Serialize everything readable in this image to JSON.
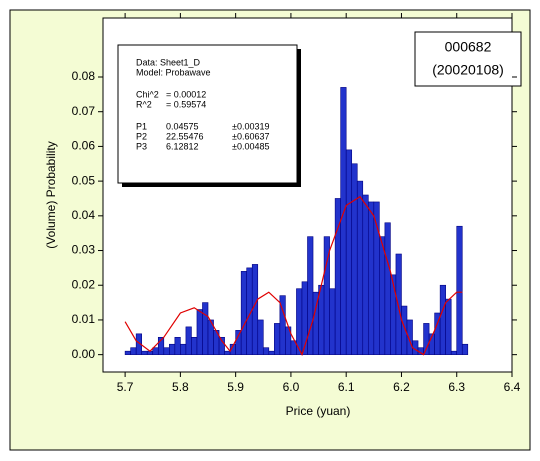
{
  "chart_data": {
    "type": "histogram",
    "xlabel": "Price (yuan)",
    "ylabel": "(Volume) Probability",
    "color": "#2233cc",
    "edgecolor": "#000080",
    "bins": [
      5.7,
      5.71,
      5.72,
      5.73,
      5.74,
      5.75,
      5.76,
      5.77,
      5.78,
      5.79,
      5.8,
      5.81,
      5.82,
      5.83,
      5.84,
      5.85,
      5.86,
      5.87,
      5.88,
      5.89,
      5.9,
      5.91,
      5.92,
      5.93,
      5.94,
      5.95,
      5.96,
      5.97,
      5.98,
      5.99,
      6.0,
      6.01,
      6.02,
      6.03,
      6.04,
      6.05,
      6.06,
      6.07,
      6.08,
      6.09,
      6.1,
      6.11,
      6.12,
      6.13,
      6.14,
      6.15,
      6.16,
      6.17,
      6.18,
      6.19,
      6.2,
      6.21,
      6.22,
      6.23,
      6.24,
      6.25,
      6.26,
      6.27,
      6.28,
      6.29,
      6.3,
      6.31,
      6.32
    ],
    "values": [
      0.001,
      0.002,
      0.006,
      0.001,
      0.001,
      0.002,
      0.005,
      0.002,
      0.003,
      0.005,
      0.003,
      0.008,
      0.005,
      0.013,
      0.015,
      0.01,
      0.007,
      0.005,
      0.001,
      0.003,
      0.007,
      0.024,
      0.025,
      0.026,
      0.01,
      0.002,
      0.001,
      0.009,
      0.017,
      0.008,
      0.004,
      0.019,
      0.021,
      0.034,
      0.018,
      0.02,
      0.034,
      0.019,
      0.045,
      0.077,
      0.059,
      0.055,
      0.05,
      0.046,
      0.044,
      0.044,
      0.034,
      0.038,
      0.023,
      0.029,
      0.014,
      0.01,
      0.004,
      0.002,
      0.009,
      0.006,
      0.012,
      0.02,
      0.016,
      0.001,
      0.037,
      0.003
    ],
    "fit": {
      "color": "#e00000",
      "x": [
        5.7,
        5.72,
        5.745,
        5.77,
        5.8,
        5.825,
        5.85,
        5.875,
        5.89,
        5.91,
        5.94,
        5.96,
        5.98,
        6.0,
        6.02,
        6.04,
        6.07,
        6.1,
        6.125,
        6.15,
        6.18,
        6.2,
        6.22,
        6.24,
        6.26,
        6.28,
        6.3,
        6.31
      ],
      "y": [
        0.0095,
        0.004,
        0.001,
        0.005,
        0.012,
        0.0135,
        0.011,
        0.004,
        0.001,
        0.007,
        0.016,
        0.018,
        0.015,
        0.006,
        0.0,
        0.01,
        0.03,
        0.043,
        0.0455,
        0.04,
        0.024,
        0.01,
        0.002,
        0.0,
        0.007,
        0.015,
        0.018,
        0.018
      ]
    },
    "xlim": [
      5.66,
      6.4
    ],
    "ylim": [
      -0.005,
      0.097
    ],
    "xticks": [
      5.7,
      5.8,
      5.9,
      {
        "value": 6,
        "label": "6.0"
      },
      6.1,
      6.2,
      6.3,
      6.4
    ],
    "yticks": [
      {
        "value": 0,
        "label": "0.00"
      },
      0.01,
      0.02,
      0.03,
      0.04,
      0.05,
      0.06,
      0.07,
      0.08
    ],
    "stats": {
      "lines": [
        "Data: Sheet1_D",
        "Model: Probawave"
      ],
      "fit_quality": [
        [
          "Chi^2",
          "= 0.00012"
        ],
        [
          "R^2",
          "= 0.59574"
        ]
      ],
      "params": [
        [
          "P1",
          "0.04575",
          "±0.00319"
        ],
        [
          "P2",
          "22.55476",
          "±0.60637"
        ],
        [
          "P3",
          "6.12812",
          "±0.00485"
        ]
      ]
    },
    "label_box": [
      "000682",
      "(20020108)"
    ]
  }
}
